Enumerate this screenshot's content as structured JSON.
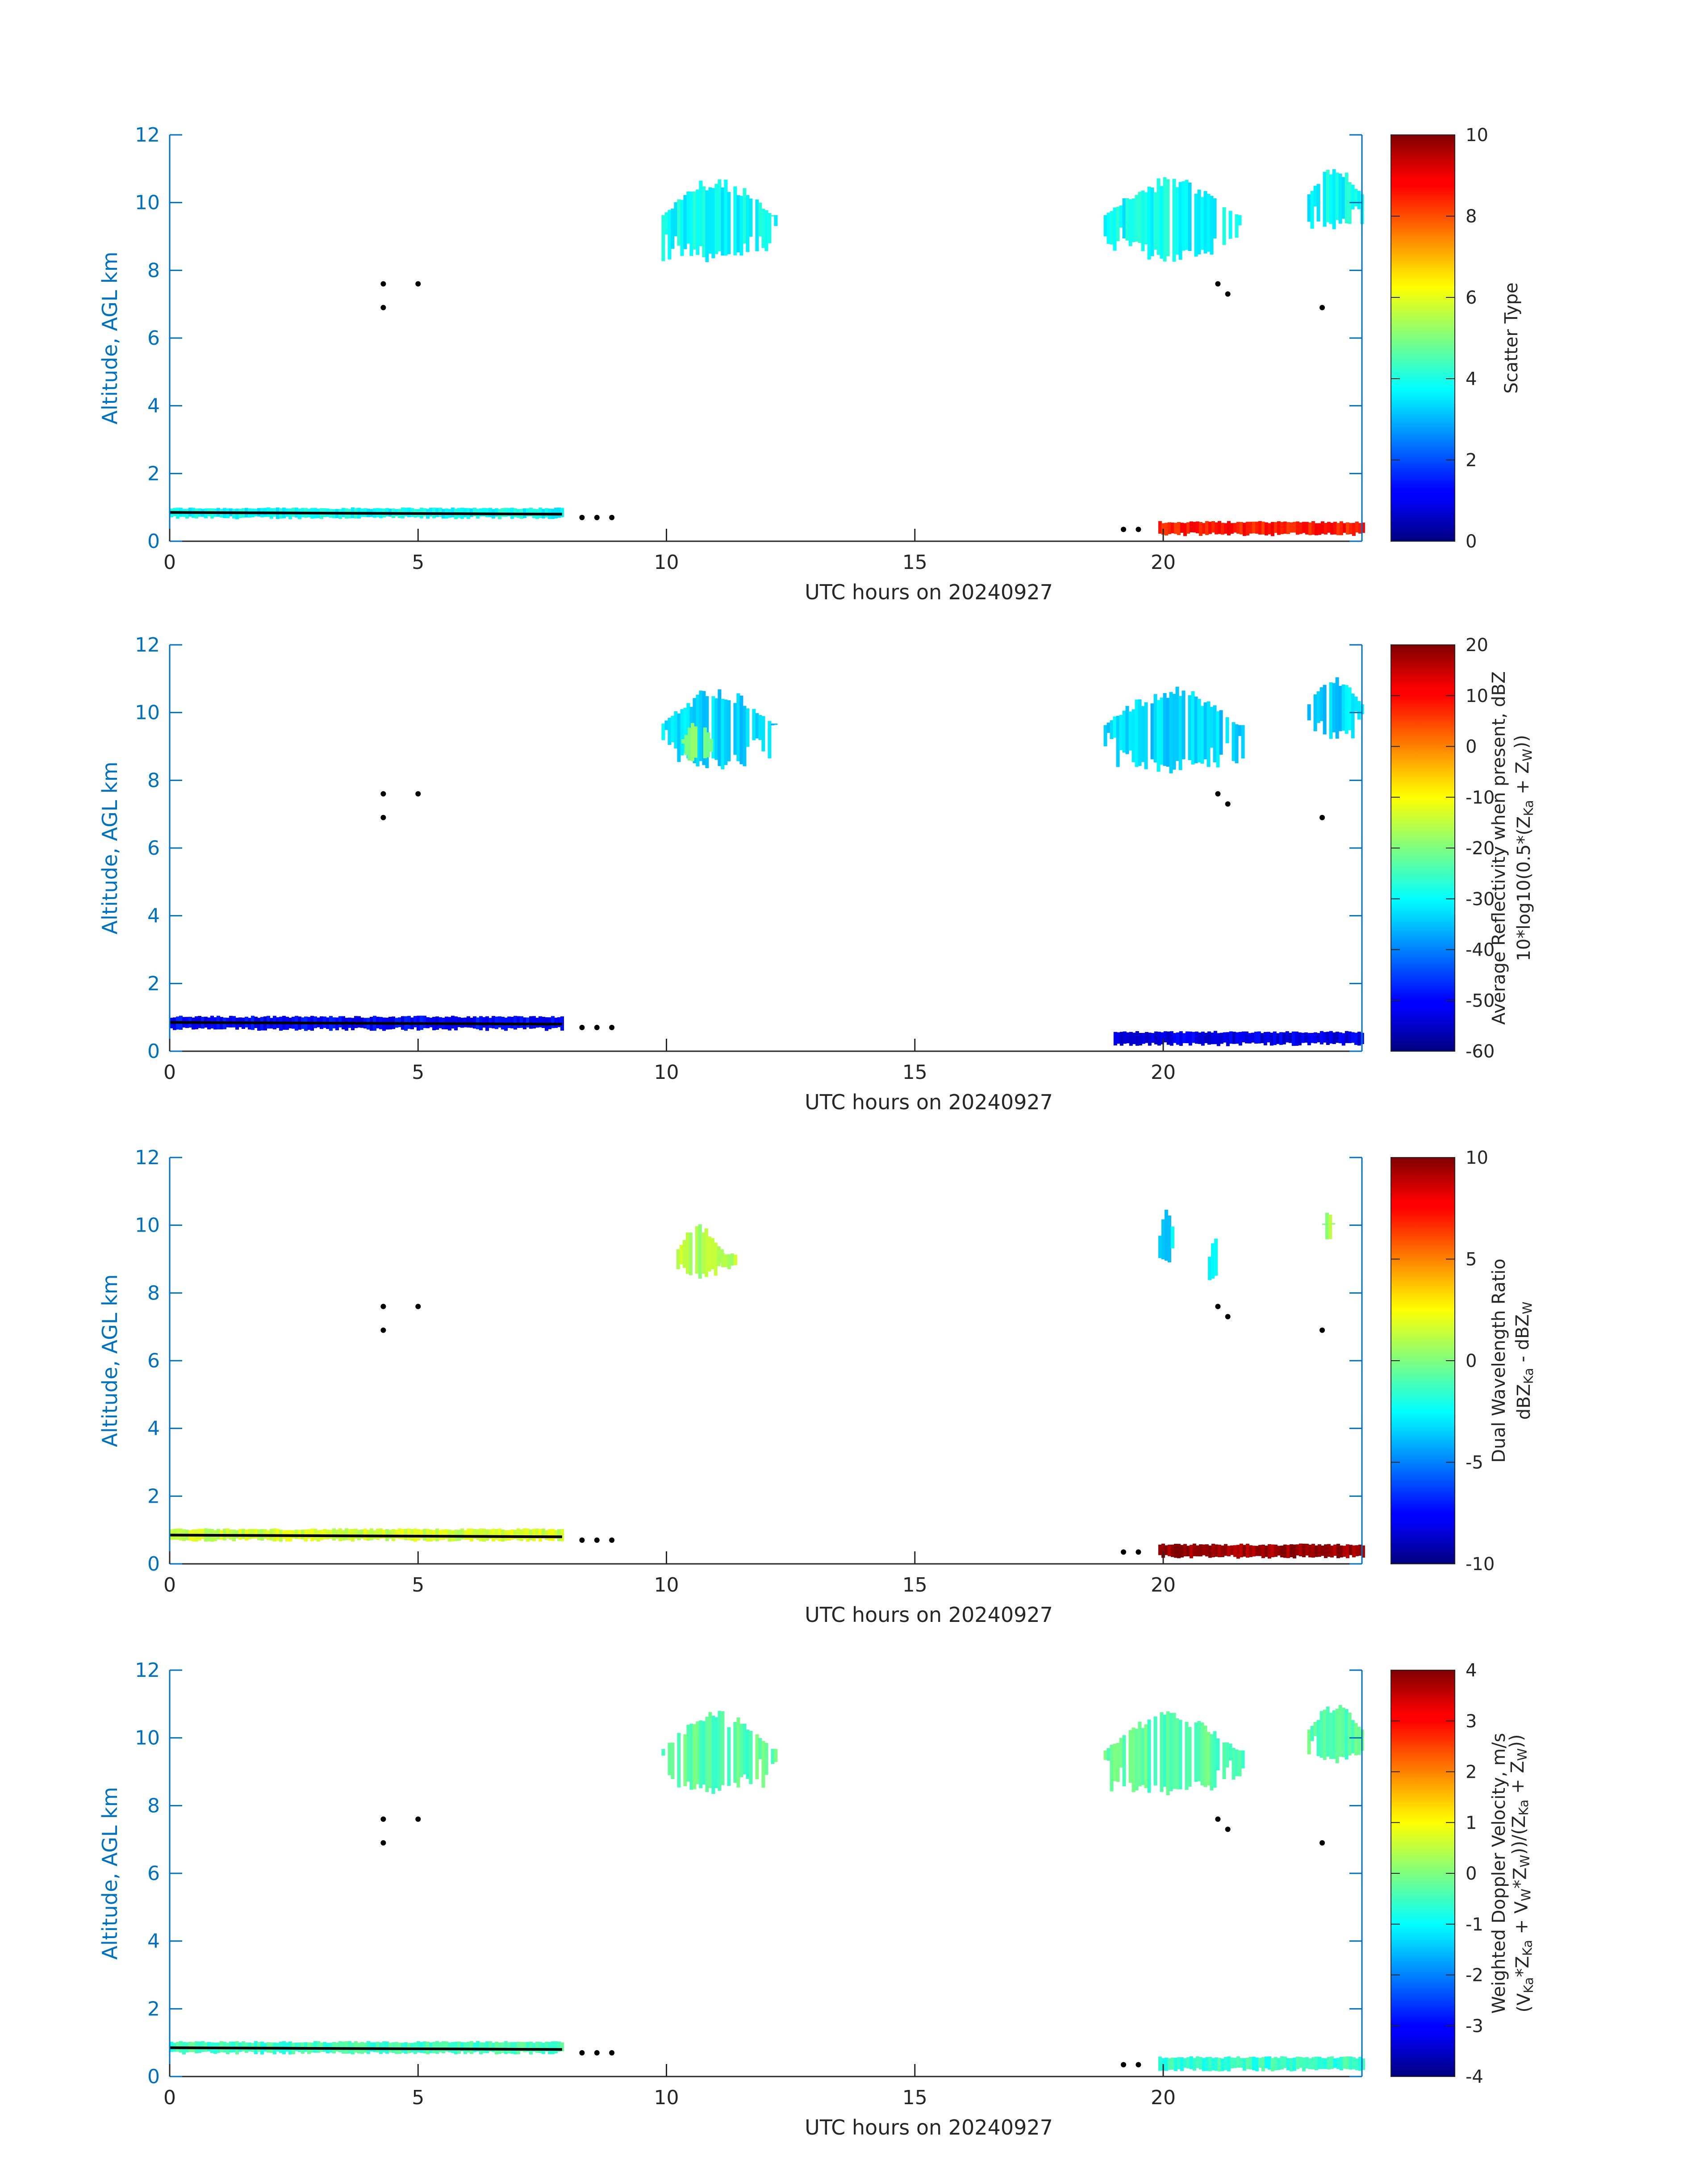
{
  "figure": {
    "shared_xlabel": "UTC hours on 20240927",
    "ylabel": "Altitude, AGL km",
    "colors": {
      "axis_y": "#0072BD",
      "axis_x": "#262626",
      "text_dark": "#262626"
    }
  },
  "chart_data": [
    {
      "type": "heatmap",
      "title": "",
      "xlabel": "UTC hours on 20240927",
      "ylabel": "Altitude, AGL km",
      "xlim": [
        0,
        24
      ],
      "ylim": [
        0,
        12
      ],
      "xticks": [
        0,
        5,
        10,
        15,
        20
      ],
      "yticks": [
        0,
        2,
        4,
        6,
        8,
        10,
        12
      ],
      "colorbar": {
        "label_lines": [
          "Scatter Type"
        ],
        "min": 0,
        "max": 10,
        "ticks": [
          0,
          2,
          4,
          6,
          8,
          10
        ]
      },
      "regions": [
        {
          "x": [
            0,
            7.9
          ],
          "y": [
            0.65,
            1.0
          ],
          "value": 3.8
        },
        {
          "x": [
            9.9,
            12.2
          ],
          "y": [
            8.2,
            10.8
          ],
          "value": 3.8
        },
        {
          "x": [
            18.8,
            21.6
          ],
          "y": [
            8.2,
            10.8
          ],
          "value": 3.8
        },
        {
          "x": [
            22.9,
            24
          ],
          "y": [
            9.2,
            11.1
          ],
          "value": 3.8
        },
        {
          "x": [
            19.9,
            24
          ],
          "y": [
            0.15,
            0.6
          ],
          "value": 8.5
        }
      ],
      "markers": [
        {
          "x": 4.3,
          "y": 7.6
        },
        {
          "x": 4.3,
          "y": 6.9
        },
        {
          "x": 5.0,
          "y": 7.6
        },
        {
          "x": 21.1,
          "y": 7.6
        },
        {
          "x": 21.3,
          "y": 7.3
        },
        {
          "x": 23.2,
          "y": 6.9
        },
        {
          "x": 8.3,
          "y": 0.7
        },
        {
          "x": 8.6,
          "y": 0.7
        },
        {
          "x": 8.9,
          "y": 0.7
        },
        {
          "x": 19.2,
          "y": 0.35
        },
        {
          "x": 19.5,
          "y": 0.35
        }
      ],
      "black_line": {
        "x": [
          0,
          7.9
        ],
        "y": [
          0.85,
          0.8
        ]
      }
    },
    {
      "type": "heatmap",
      "title": "",
      "xlabel": "UTC hours on 20240927",
      "ylabel": "Altitude, AGL km",
      "xlim": [
        0,
        24
      ],
      "ylim": [
        0,
        12
      ],
      "xticks": [
        0,
        5,
        10,
        15,
        20
      ],
      "yticks": [
        0,
        2,
        4,
        6,
        8,
        10,
        12
      ],
      "colorbar": {
        "label_lines": [
          "Average Reflectivity when present, dBZ",
          "10*log10(0.5*(Z_Ka + Z_W))"
        ],
        "min": -60,
        "max": 20,
        "ticks": [
          -60,
          -50,
          -40,
          -30,
          -20,
          -10,
          0,
          10,
          20
        ]
      },
      "regions": [
        {
          "x": [
            0,
            7.9
          ],
          "y": [
            0.6,
            1.05
          ],
          "value": -50
        },
        {
          "x": [
            9.9,
            12.2
          ],
          "y": [
            8.3,
            10.8
          ],
          "value": -33
        },
        {
          "x": [
            10.3,
            10.9
          ],
          "y": [
            8.5,
            9.8
          ],
          "value": -18
        },
        {
          "x": [
            18.8,
            21.6
          ],
          "y": [
            8.2,
            10.8
          ],
          "value": -33
        },
        {
          "x": [
            22.9,
            24
          ],
          "y": [
            9.2,
            11.1
          ],
          "value": -33
        },
        {
          "x": [
            19.0,
            24
          ],
          "y": [
            0.15,
            0.6
          ],
          "value": -52
        }
      ],
      "markers": [
        {
          "x": 4.3,
          "y": 7.6
        },
        {
          "x": 4.3,
          "y": 6.9
        },
        {
          "x": 5.0,
          "y": 7.6
        },
        {
          "x": 21.1,
          "y": 7.6
        },
        {
          "x": 21.3,
          "y": 7.3
        },
        {
          "x": 23.2,
          "y": 6.9
        },
        {
          "x": 8.3,
          "y": 0.7
        },
        {
          "x": 8.6,
          "y": 0.7
        },
        {
          "x": 8.9,
          "y": 0.7
        }
      ],
      "black_line": {
        "x": [
          0,
          7.9
        ],
        "y": [
          0.85,
          0.8
        ]
      }
    },
    {
      "type": "heatmap",
      "title": "",
      "xlabel": "UTC hours on 20240927",
      "ylabel": "Altitude, AGL km",
      "xlim": [
        0,
        24
      ],
      "ylim": [
        0,
        12
      ],
      "xticks": [
        0,
        5,
        10,
        15,
        20
      ],
      "yticks": [
        0,
        2,
        4,
        6,
        8,
        10,
        12
      ],
      "colorbar": {
        "label_lines": [
          "Dual Wavelength Ratio",
          "dBZ_Ka - dBZ_W"
        ],
        "min": -10,
        "max": 10,
        "ticks": [
          -10,
          -5,
          0,
          5,
          10
        ]
      },
      "regions": [
        {
          "x": [
            0,
            7.9
          ],
          "y": [
            0.65,
            1.05
          ],
          "value": 1.5
        },
        {
          "x": [
            10.2,
            11.1
          ],
          "y": [
            8.3,
            10.1
          ],
          "value": 1.0
        },
        {
          "x": [
            11.1,
            11.4
          ],
          "y": [
            8.7,
            9.2
          ],
          "value": 1.0
        },
        {
          "x": [
            19.9,
            20.2
          ],
          "y": [
            8.7,
            10.5
          ],
          "value": -3.0
        },
        {
          "x": [
            20.9,
            21.2
          ],
          "y": [
            8.3,
            9.7
          ],
          "value": -3.0
        },
        {
          "x": [
            23.2,
            23.4
          ],
          "y": [
            9.5,
            10.5
          ],
          "value": 0.5
        },
        {
          "x": [
            19.9,
            24
          ],
          "y": [
            0.15,
            0.6
          ],
          "value": 9.5
        }
      ],
      "markers": [
        {
          "x": 4.3,
          "y": 7.6
        },
        {
          "x": 4.3,
          "y": 6.9
        },
        {
          "x": 5.0,
          "y": 7.6
        },
        {
          "x": 21.1,
          "y": 7.6
        },
        {
          "x": 21.3,
          "y": 7.3
        },
        {
          "x": 23.2,
          "y": 6.9
        },
        {
          "x": 8.3,
          "y": 0.7
        },
        {
          "x": 8.6,
          "y": 0.7
        },
        {
          "x": 8.9,
          "y": 0.7
        },
        {
          "x": 19.2,
          "y": 0.35
        },
        {
          "x": 19.5,
          "y": 0.35
        }
      ],
      "black_line": {
        "x": [
          0,
          7.9
        ],
        "y": [
          0.85,
          0.8
        ]
      }
    },
    {
      "type": "heatmap",
      "title": "",
      "xlabel": "UTC hours on 20240927",
      "ylabel": "Altitude, AGL km",
      "xlim": [
        0,
        24
      ],
      "ylim": [
        0,
        12
      ],
      "xticks": [
        0,
        5,
        10,
        15,
        20
      ],
      "yticks": [
        0,
        2,
        4,
        6,
        8,
        10,
        12
      ],
      "colorbar": {
        "label_lines": [
          "Weighted Doppler Velocity, m/s",
          "(V_Ka*Z_Ka + V_W*Z_W))/(Z_Ka + Z_W))"
        ],
        "min": -4,
        "max": 4,
        "ticks": [
          -4,
          -3,
          -2,
          -1,
          0,
          1,
          2,
          3,
          4
        ]
      },
      "regions": [
        {
          "x": [
            0,
            7.9
          ],
          "y": [
            0.65,
            1.05
          ],
          "value": -0.5
        },
        {
          "x": [
            9.9,
            12.2
          ],
          "y": [
            8.3,
            10.8
          ],
          "value": -0.3
        },
        {
          "x": [
            18.8,
            21.6
          ],
          "y": [
            8.2,
            10.8
          ],
          "value": -0.3
        },
        {
          "x": [
            22.9,
            24
          ],
          "y": [
            9.2,
            11.1
          ],
          "value": -0.3
        },
        {
          "x": [
            19.9,
            24
          ],
          "y": [
            0.15,
            0.6
          ],
          "value": -0.6
        }
      ],
      "markers": [
        {
          "x": 4.3,
          "y": 7.6
        },
        {
          "x": 4.3,
          "y": 6.9
        },
        {
          "x": 5.0,
          "y": 7.6
        },
        {
          "x": 21.1,
          "y": 7.6
        },
        {
          "x": 21.3,
          "y": 7.3
        },
        {
          "x": 23.2,
          "y": 6.9
        },
        {
          "x": 8.3,
          "y": 0.7
        },
        {
          "x": 8.6,
          "y": 0.7
        },
        {
          "x": 8.9,
          "y": 0.7
        },
        {
          "x": 19.2,
          "y": 0.35
        },
        {
          "x": 19.5,
          "y": 0.35
        }
      ],
      "black_line": {
        "x": [
          0,
          7.9
        ],
        "y": [
          0.85,
          0.8
        ]
      }
    }
  ]
}
